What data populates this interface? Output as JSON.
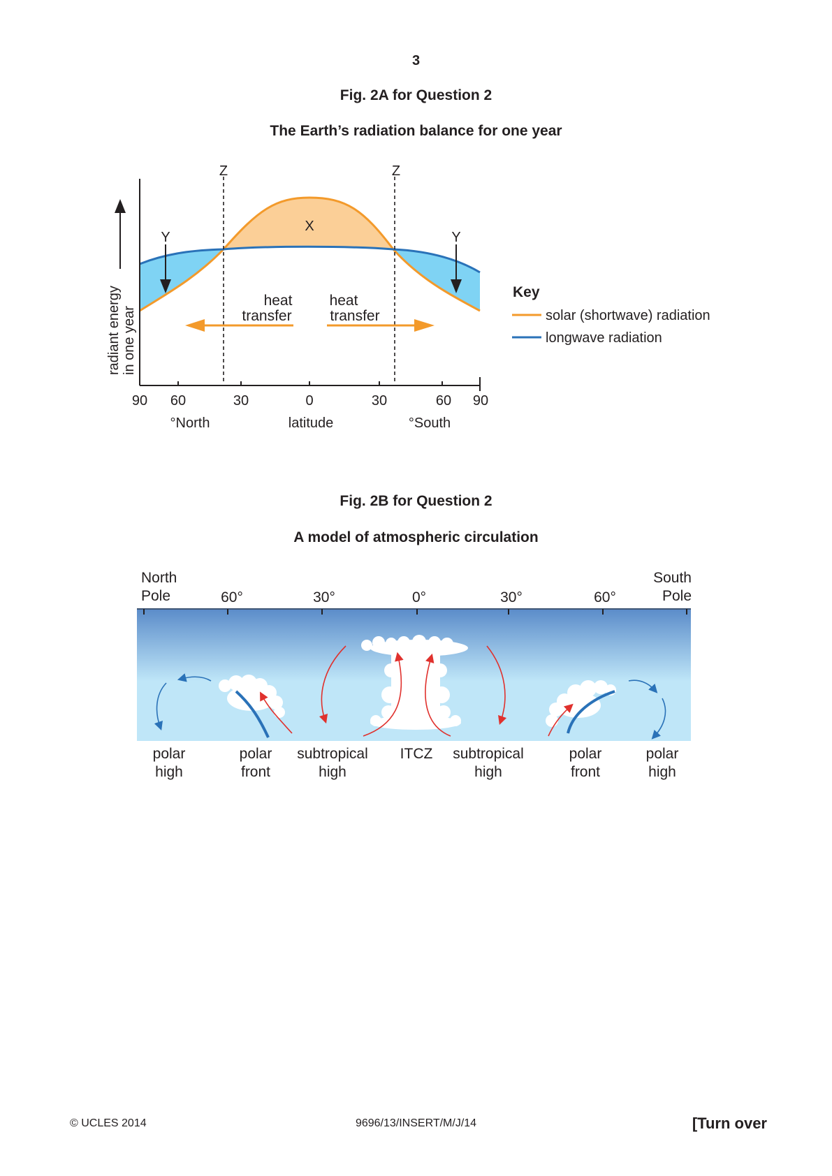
{
  "page": {
    "number": "3",
    "footer": {
      "copyright": "© UCLES 2014",
      "code": "9696/13/INSERT/M/J/14",
      "turn_over": "[Turn over"
    }
  },
  "fig2a": {
    "caption": "Fig. 2A for Question 2",
    "title": "The Earth’s radiation balance for one year",
    "y_axis_label_line1": "radiant energy",
    "y_axis_label_line2": "in one year",
    "x_tick_labels": [
      "90",
      "60",
      "30",
      "0",
      "30",
      "60",
      "90"
    ],
    "x_label_left": "°North",
    "x_label_center": "latitude",
    "x_label_right": "°South",
    "marker_z": "Z",
    "marker_y": "Y",
    "marker_x": "X",
    "heat_transfer_line1": "heat",
    "heat_transfer_line2": "transfer",
    "key": {
      "title": "Key",
      "solar": "solar (shortwave) radiation",
      "longwave": "longwave radiation"
    },
    "colors": {
      "solar": "#f39a2b",
      "solar_fill": "#fbcf97",
      "longwave": "#2a72b8",
      "longwave_fill": "#7fd3f4"
    }
  },
  "fig2b": {
    "caption": "Fig. 2B for Question 2",
    "title": "A model of atmospheric circulation",
    "top_labels": {
      "north_pole_line1": "North",
      "north_pole_line2": "Pole",
      "south_pole_line1": "South",
      "south_pole_line2": "Pole",
      "lat_60_left": "60°",
      "lat_30_left": "30°",
      "lat_0": "0°",
      "lat_30_right": "30°",
      "lat_60_right": "60°"
    },
    "bottom_labels": {
      "polar_high_left_1": "polar",
      "polar_high_left_2": "high",
      "polar_front_left_1": "polar",
      "polar_front_left_2": "front",
      "subtropical_left_1": "subtropical",
      "subtropical_left_2": "high",
      "itcz": "ITCZ",
      "subtropical_right_1": "subtropical",
      "subtropical_right_2": "high",
      "polar_front_right_1": "polar",
      "polar_front_right_2": "front",
      "polar_high_right_1": "polar",
      "polar_high_right_2": "high"
    },
    "colors": {
      "sky_top": "#5a8bc9",
      "sky_bottom": "#bfe6f8",
      "warm_arrow": "#e0312d",
      "cold_arrow": "#2a72b8"
    }
  }
}
